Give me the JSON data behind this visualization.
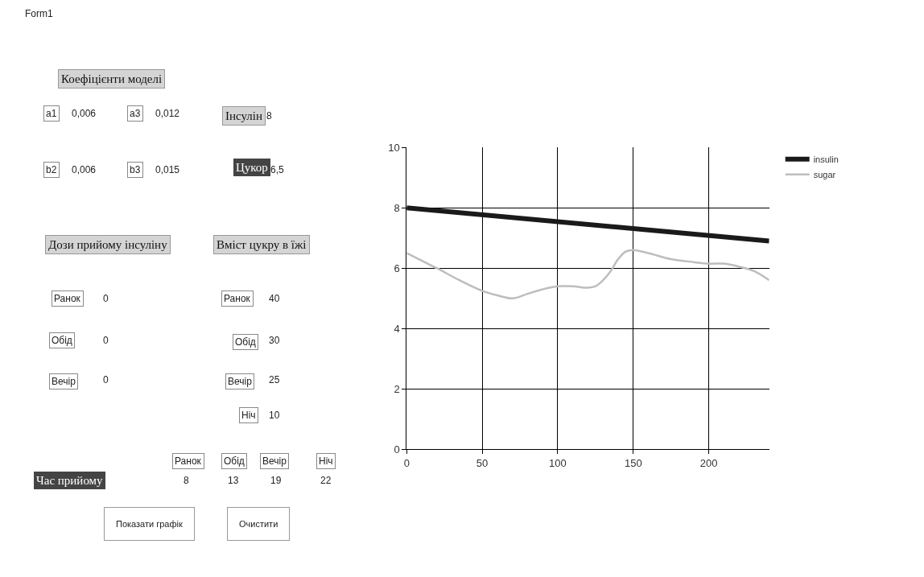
{
  "chart_data": [
    {
      "type": "other",
      "annotations": [
        "Form1",
        "Коефіцієнти моделі",
        "a1",
        "0,006",
        "a3",
        "0,012",
        "Інсулін",
        "8",
        "b2",
        "0,006",
        "b3",
        "0,015",
        "Цукор",
        "6,5",
        "Дози прийому інсуліну",
        "Вміст цукру в їжі",
        "Ранок",
        "0",
        "Ранок",
        "40",
        "Обід",
        "0",
        "Обід",
        "30",
        "Вечір",
        "0",
        "Вечір",
        "25",
        "Ніч",
        "10",
        "Ранок",
        "Обід",
        "Вечір",
        "Ніч",
        "Час прийому",
        "8",
        "13",
        "19",
        "22",
        "Показати графік",
        "Очистити"
      ]
    },
    {
      "type": "line",
      "xlim": [
        0,
        240
      ],
      "ylim": [
        0,
        10
      ],
      "xticks": [
        0,
        50,
        100,
        150,
        200
      ],
      "yticks": [
        0,
        2,
        4,
        6,
        8,
        10
      ],
      "grid": true,
      "legend": "top right",
      "series": [
        {
          "name": "insulin",
          "color": "#1a1a1a",
          "x": [
            0,
            240
          ],
          "values": [
            8,
            6.9
          ]
        },
        {
          "name": "sugar",
          "color": "#bdbdbd",
          "x": [
            0,
            10,
            20,
            35,
            50,
            60,
            70,
            80,
            90,
            100,
            110,
            120,
            125,
            130,
            135,
            140,
            145,
            150,
            160,
            175,
            190,
            200,
            210,
            220,
            230,
            240
          ],
          "values": [
            6.5,
            6.25,
            6.0,
            5.6,
            5.25,
            5.1,
            5.0,
            5.15,
            5.3,
            5.4,
            5.4,
            5.35,
            5.4,
            5.6,
            5.9,
            6.3,
            6.55,
            6.6,
            6.5,
            6.3,
            6.2,
            6.15,
            6.15,
            6.05,
            5.9,
            5.6
          ]
        }
      ]
    }
  ]
}
